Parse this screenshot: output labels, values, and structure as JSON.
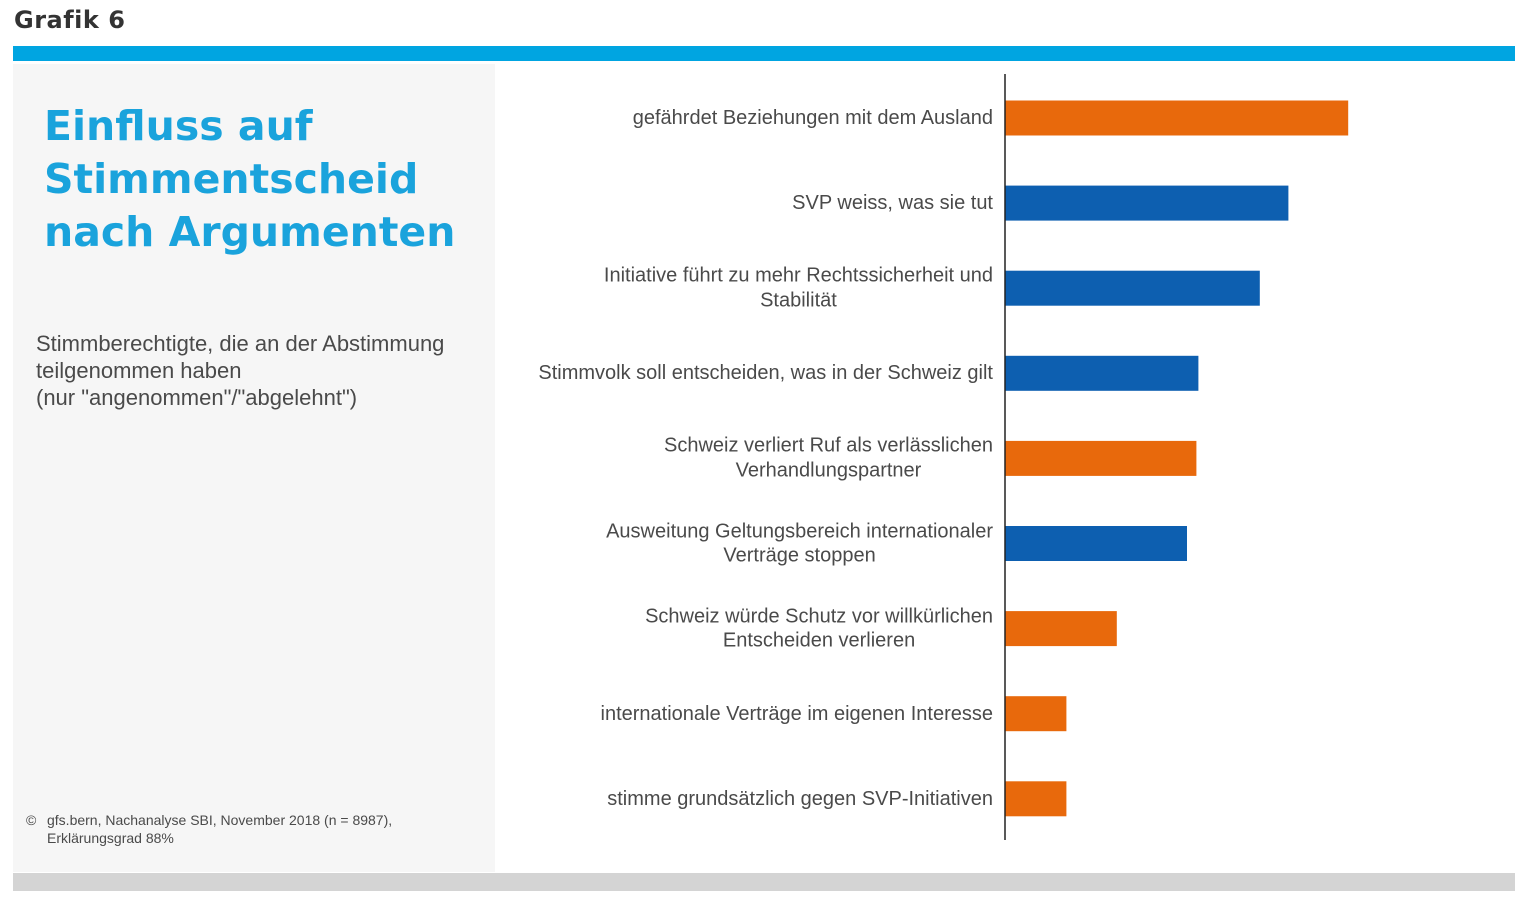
{
  "header": {
    "label": "Grafik 6"
  },
  "panel": {
    "title_lines": [
      "Einfluss auf",
      "Stimmentscheid",
      "nach Argumenten"
    ],
    "subtitle_lines": [
      "Stimmberechtigte, die an der Abstimmung",
      "teilgenommen haben",
      "(nur \"angenommen\"/\"abgelehnt\")"
    ],
    "footnote_symbol": "©",
    "footnote_lines": [
      "gfs.bern, Nachanalyse SBI, November 2018 (n = 8987),",
      "Erklärungsgrad 88%"
    ]
  },
  "colors": {
    "accent": "#00a5e1",
    "title": "#1aa3dc",
    "orange": "#e8690c",
    "blue": "#0d5fb0",
    "axis": "#222222",
    "panel_bg": "#f6f6f6",
    "bottom_rule": "#d4d4d4"
  },
  "chart_data": {
    "type": "bar",
    "orientation": "horizontal",
    "title": "Einfluss auf Stimmentscheid nach Argumenten",
    "xlabel": "",
    "ylabel": "",
    "xlim": [
      0,
      1
    ],
    "value_unit": "relative influence (unlabeled)",
    "grid": false,
    "legend": "none",
    "categories": [
      [
        "gefährdet Beziehungen mit dem Ausland"
      ],
      [
        "SVP weiss, was sie tut"
      ],
      [
        "Initiative führt zu mehr Rechtssicherheit und",
        "Stabilität"
      ],
      [
        "Stimmvolk soll entscheiden, was in der Schweiz gilt"
      ],
      [
        "Schweiz verliert Ruf als verlässlichen",
        "Verhandlungspartner"
      ],
      [
        "Ausweitung Geltungsbereich internationaler",
        "Verträge stoppen"
      ],
      [
        "Schweiz würde Schutz vor willkürlichen",
        "Entscheiden verlieren"
      ],
      [
        "internationale Verträge im eigenen Interesse"
      ],
      [
        "stimme grundsätzlich gegen SVP-Initiativen"
      ]
    ],
    "values": [
      0.66,
      0.545,
      0.49,
      0.372,
      0.368,
      0.35,
      0.215,
      0.118,
      0.118
    ],
    "bar_colors": [
      "orange",
      "blue",
      "blue",
      "blue",
      "orange",
      "blue",
      "orange",
      "orange",
      "orange"
    ]
  }
}
